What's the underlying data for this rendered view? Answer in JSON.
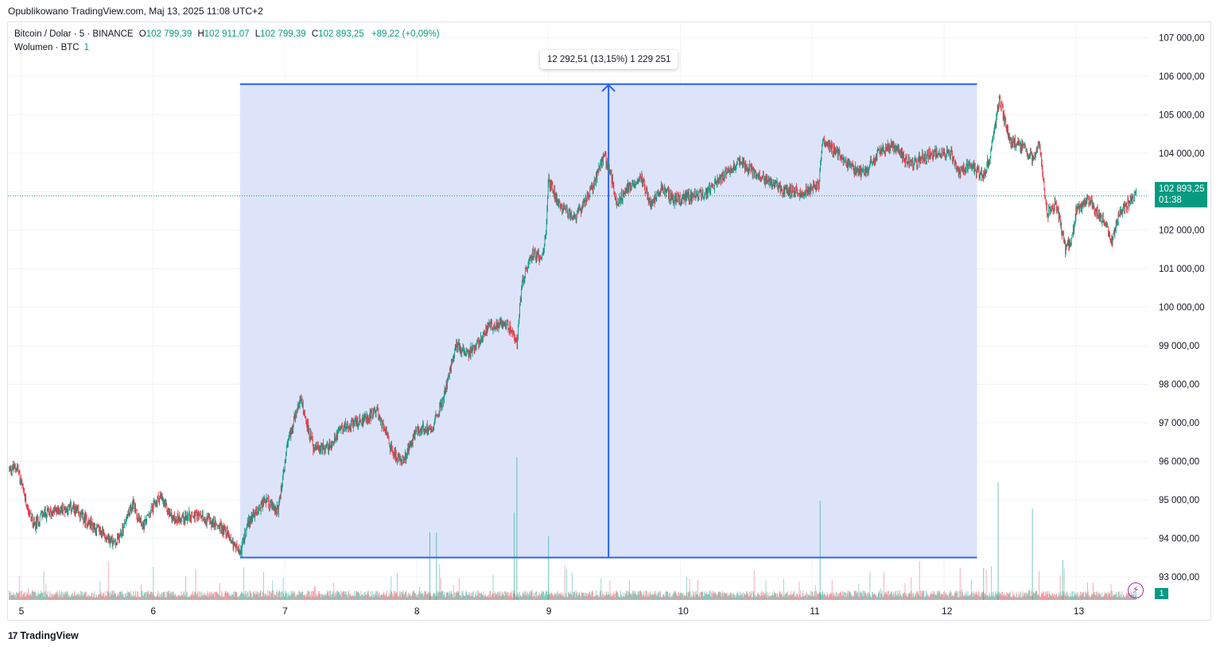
{
  "header": {
    "publish_text": "Opublikowano TradingView.com, Maj 13, 2025 11:08 UTC+2"
  },
  "legend": {
    "symbol": "Bitcoin / Dolar · 5 · BINANCE",
    "open_label": "O",
    "open": "102 799,39",
    "high_label": "H",
    "high": "102 911,07",
    "low_label": "L",
    "low": "102 799,39",
    "close_label": "C",
    "close": "102 893,25",
    "change": "+89,22 (+0,09%)",
    "volume_label": "Wolumen · BTC",
    "volume_value": "1"
  },
  "price_tag": {
    "price": "102 893,25",
    "countdown": "01:38"
  },
  "volume_tag": "1",
  "measure_label": "12 292,51 (13,15%) 1 229 251",
  "branding": "TradingView",
  "icons": {
    "alert": "lightning-icon",
    "logo": "tradingview-logo-icon"
  },
  "colors": {
    "up": "#089981",
    "down": "#f23645",
    "measure": "#2962ff",
    "measure_fill": "#dde4fa",
    "price_line": "#089981"
  },
  "chart_data": {
    "type": "candlestick",
    "symbol": "Bitcoin / Dolar",
    "interval": "5",
    "exchange": "BINANCE",
    "x_ticks": [
      "5",
      "6",
      "7",
      "8",
      "9",
      "10",
      "11",
      "12",
      "13"
    ],
    "y_ticks": [
      "107 000,00",
      "106 000,00",
      "105 000,00",
      "104 000,00",
      "102 000,00",
      "101 000,00",
      "100 000,00",
      "99 000,00",
      "98 000,00",
      "97 000,00",
      "96 000,00",
      "95 000,00",
      "94 000,00",
      "93 000,00"
    ],
    "y_tick_values": [
      107000,
      106000,
      105000,
      104000,
      102000,
      101000,
      100000,
      99000,
      98000,
      97000,
      96000,
      95000,
      94000,
      93000
    ],
    "ylim": [
      92400,
      107400
    ],
    "xlim_days": [
      4.9,
      13.55
    ],
    "current_price": 102893.25,
    "price_path": [
      [
        4.91,
        95800
      ],
      [
        4.97,
        95850
      ],
      [
        5.03,
        95000
      ],
      [
        5.1,
        94300
      ],
      [
        5.15,
        94600
      ],
      [
        5.25,
        94700
      ],
      [
        5.38,
        94800
      ],
      [
        5.55,
        94300
      ],
      [
        5.72,
        93850
      ],
      [
        5.85,
        94900
      ],
      [
        5.92,
        94300
      ],
      [
        6.05,
        95100
      ],
      [
        6.15,
        94500
      ],
      [
        6.3,
        94600
      ],
      [
        6.4,
        94500
      ],
      [
        6.55,
        94200
      ],
      [
        6.66,
        93600
      ],
      [
        6.72,
        94400
      ],
      [
        6.85,
        95000
      ],
      [
        6.95,
        94700
      ],
      [
        7.02,
        96500
      ],
      [
        7.12,
        97600
      ],
      [
        7.22,
        96300
      ],
      [
        7.35,
        96400
      ],
      [
        7.42,
        96900
      ],
      [
        7.55,
        97000
      ],
      [
        7.7,
        97300
      ],
      [
        7.82,
        96200
      ],
      [
        7.9,
        96000
      ],
      [
        8.0,
        96800
      ],
      [
        8.12,
        96900
      ],
      [
        8.2,
        97600
      ],
      [
        8.3,
        99000
      ],
      [
        8.4,
        98800
      ],
      [
        8.55,
        99500
      ],
      [
        8.65,
        99600
      ],
      [
        8.72,
        99400
      ],
      [
        8.76,
        99100
      ],
      [
        8.8,
        100700
      ],
      [
        8.88,
        101400
      ],
      [
        8.95,
        101300
      ],
      [
        8.98,
        101900
      ],
      [
        9.0,
        103300
      ],
      [
        9.08,
        102700
      ],
      [
        9.2,
        102300
      ],
      [
        9.32,
        103000
      ],
      [
        9.42,
        103900
      ],
      [
        9.46,
        103600
      ],
      [
        9.52,
        102700
      ],
      [
        9.6,
        103100
      ],
      [
        9.7,
        103400
      ],
      [
        9.78,
        102600
      ],
      [
        9.85,
        103100
      ],
      [
        9.95,
        102800
      ],
      [
        10.05,
        102850
      ],
      [
        10.2,
        102950
      ],
      [
        10.35,
        103500
      ],
      [
        10.45,
        103800
      ],
      [
        10.6,
        103400
      ],
      [
        10.8,
        103000
      ],
      [
        10.95,
        103000
      ],
      [
        11.05,
        103200
      ],
      [
        11.08,
        104300
      ],
      [
        11.18,
        104000
      ],
      [
        11.3,
        103600
      ],
      [
        11.4,
        103500
      ],
      [
        11.5,
        104000
      ],
      [
        11.6,
        104200
      ],
      [
        11.75,
        103700
      ],
      [
        11.9,
        104000
      ],
      [
        12.05,
        104000
      ],
      [
        12.12,
        103500
      ],
      [
        12.2,
        103700
      ],
      [
        12.25,
        103500
      ],
      [
        12.3,
        103400
      ],
      [
        12.36,
        104100
      ],
      [
        12.42,
        105400
      ],
      [
        12.5,
        104300
      ],
      [
        12.6,
        104200
      ],
      [
        12.68,
        103800
      ],
      [
        12.72,
        104300
      ],
      [
        12.78,
        102400
      ],
      [
        12.85,
        102700
      ],
      [
        12.92,
        101500
      ],
      [
        12.97,
        101800
      ],
      [
        13.0,
        102500
      ],
      [
        13.1,
        102800
      ],
      [
        13.15,
        102500
      ],
      [
        13.22,
        102200
      ],
      [
        13.27,
        101700
      ],
      [
        13.32,
        102400
      ],
      [
        13.4,
        102700
      ],
      [
        13.45,
        102900
      ],
      [
        13.46,
        102893
      ]
    ],
    "measure": {
      "start_day": 6.66,
      "end_day": 12.25,
      "from_price": 93500,
      "to_price": 105793,
      "change": "12 292,51",
      "change_pct": "13,15%",
      "bars": "1 229 251"
    },
    "volume_axis": {
      "tag_value": "1"
    }
  }
}
